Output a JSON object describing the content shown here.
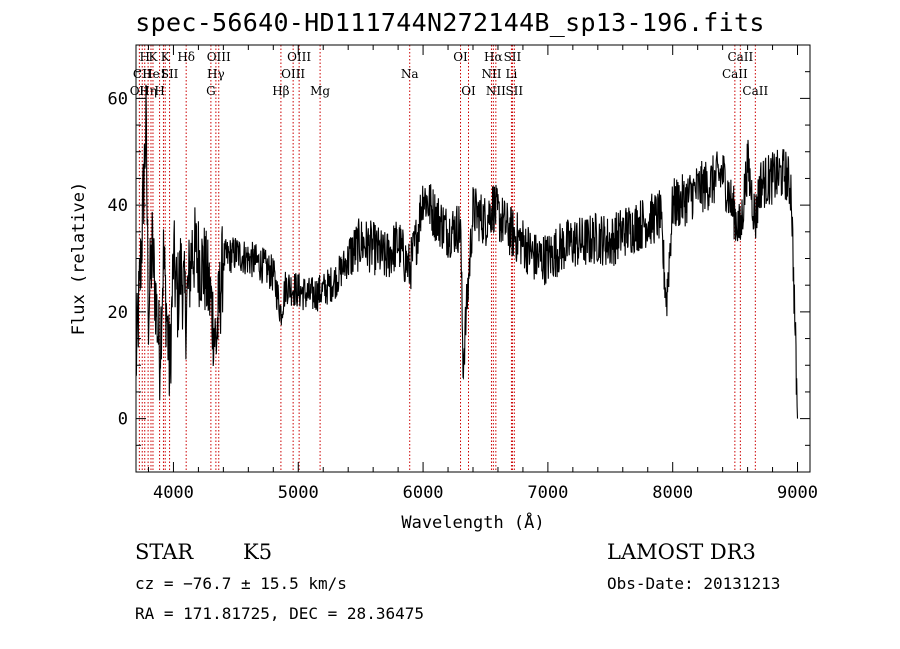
{
  "chart_data": {
    "type": "line",
    "title": "spec-56640-HD111744N272144B_sp13-196.fits",
    "xlabel": "Wavelength (Å)",
    "ylabel": "Flux (relative)",
    "xlim": [
      3700,
      9100
    ],
    "ylim": [
      -10,
      70
    ],
    "x_ticks": [
      4000,
      5000,
      6000,
      7000,
      8000,
      9000
    ],
    "y_ticks": [
      0,
      20,
      40,
      60
    ],
    "x_tick_labels": [
      "4000",
      "5000",
      "6000",
      "7000",
      "8000",
      "9000"
    ],
    "y_tick_labels": [
      "0",
      "20",
      "40",
      "60"
    ],
    "series": [
      {
        "name": "flux",
        "x": [
          3700,
          3740,
          3780,
          3800,
          3830,
          3860,
          3890,
          3920,
          3950,
          3970,
          4000,
          4030,
          4060,
          4100,
          4150,
          4200,
          4250,
          4300,
          4340,
          4400,
          4500,
          4600,
          4700,
          4800,
          4861,
          4900,
          5000,
          5100,
          5200,
          5300,
          5400,
          5500,
          5600,
          5700,
          5800,
          5850,
          5893,
          5950,
          6000,
          6100,
          6200,
          6300,
          6320,
          6400,
          6500,
          6563,
          6600,
          6700,
          6800,
          6900,
          7000,
          7100,
          7200,
          7300,
          7400,
          7500,
          7600,
          7700,
          7800,
          7900,
          7950,
          8000,
          8100,
          8200,
          8300,
          8400,
          8498,
          8542,
          8600,
          8662,
          8700,
          8800,
          8900,
          8950,
          9000
        ],
        "y": [
          10,
          30,
          55,
          20,
          32,
          22,
          12,
          30,
          18,
          8,
          30,
          22,
          28,
          20,
          32,
          30,
          28,
          22,
          14,
          30,
          31,
          30,
          29,
          27,
          20,
          25,
          24,
          23,
          24,
          26,
          30,
          33,
          32,
          30,
          33,
          30,
          28,
          34,
          42,
          38,
          35,
          36,
          10,
          39,
          37,
          40,
          38,
          35,
          33,
          30,
          30,
          32,
          33,
          33,
          34,
          33,
          35,
          36,
          37,
          38,
          22,
          40,
          41,
          43,
          44,
          46,
          38,
          35,
          48,
          37,
          44,
          45,
          46,
          43,
          0
        ]
      }
    ],
    "line_labels": [
      {
        "wl": 3727,
        "name": "OII",
        "row": 3
      },
      {
        "wl": 3750,
        "name": "CII",
        "row": 2
      },
      {
        "wl": 3770,
        "name": "H",
        "row": 1
      },
      {
        "wl": 3797,
        "name": "Hη",
        "row": 3
      },
      {
        "wl": 3820,
        "name": "He",
        "row": 2
      },
      {
        "wl": 3836,
        "name": "K",
        "row": 1
      },
      {
        "wl": 3889,
        "name": "H",
        "row": 3
      },
      {
        "wl": 3920,
        "name": "I",
        "row": 2
      },
      {
        "wl": 3934,
        "name": "K",
        "row": 1
      },
      {
        "wl": 3969,
        "name": "SII",
        "row": 2
      },
      {
        "wl": 4102,
        "name": "Hδ",
        "row": 1
      },
      {
        "wl": 4300,
        "name": "G",
        "row": 3
      },
      {
        "wl": 4340,
        "name": "Hγ",
        "row": 2
      },
      {
        "wl": 4363,
        "name": "OIII",
        "row": 1
      },
      {
        "wl": 4861,
        "name": "Hβ",
        "row": 3
      },
      {
        "wl": 4959,
        "name": "OIII",
        "row": 2
      },
      {
        "wl": 5007,
        "name": "OIII",
        "row": 1
      },
      {
        "wl": 5175,
        "name": "Mg",
        "row": 3
      },
      {
        "wl": 5893,
        "name": "Na",
        "row": 2
      },
      {
        "wl": 6300,
        "name": "OI",
        "row": 1
      },
      {
        "wl": 6364,
        "name": "OI",
        "row": 3
      },
      {
        "wl": 6548,
        "name": "NII",
        "row": 2
      },
      {
        "wl": 6563,
        "name": "Hα",
        "row": 1
      },
      {
        "wl": 6583,
        "name": "NII",
        "row": 3
      },
      {
        "wl": 6708,
        "name": "Li",
        "row": 2
      },
      {
        "wl": 6716,
        "name": "SII",
        "row": 1
      },
      {
        "wl": 6731,
        "name": "SII",
        "row": 3
      },
      {
        "wl": 8498,
        "name": "CaII",
        "row": 2
      },
      {
        "wl": 8542,
        "name": "CaII",
        "row": 1
      },
      {
        "wl": 8662,
        "name": "CaII",
        "row": 3
      }
    ]
  },
  "info": {
    "object_class": "STAR",
    "subclass": "K5",
    "survey": "LAMOST DR3",
    "cz": "cz = −76.7 ± 15.5 km/s",
    "obs_date": "Obs-Date: 20131213",
    "coords": "RA = 171.81725, DEC =  28.36475"
  },
  "colors": {
    "line_marker": "#cc0000",
    "spectrum": "#000000",
    "axes": "#000000"
  }
}
